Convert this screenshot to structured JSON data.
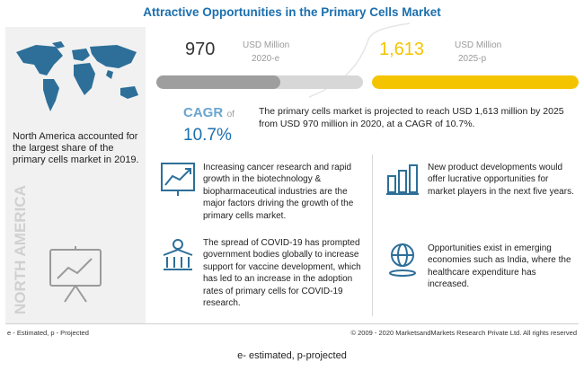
{
  "title": "Attractive Opportunities in the Primary Cells Market",
  "left_panel": {
    "summary": "North America accounted for the largest share of the primary cells market in 2019.",
    "region_label": "NORTH AMERICA"
  },
  "market": {
    "value_2020": "970",
    "unit_2020": "USD Million",
    "year_2020": "2020-e",
    "value_2025": "1,613",
    "unit_2025": "USD Million",
    "year_2025": "2025-p",
    "cagr_label": "CAGR",
    "cagr_of": "of",
    "cagr_value": "10.7%",
    "description": "The primary cells market is projected to reach USD 1,613 million by 2025 from USD 970 million in 2020, at a CAGR of 10.7%."
  },
  "chart_data": {
    "type": "bar",
    "categories": [
      "2020-e",
      "2025-p"
    ],
    "values": [
      970,
      1613
    ],
    "ylabel": "USD Million",
    "colors": [
      "#9e9e9e",
      "#f5c400"
    ],
    "cagr": "10.7%"
  },
  "insights": [
    {
      "icon": "growth-chart-icon",
      "text": "Increasing cancer research and rapid growth in the biotechnology & biopharmaceutical industries are the major factors driving the growth of the primary cells market."
    },
    {
      "icon": "money-growth-icon",
      "text": "New product developments would offer lucrative opportunities for market players in the next five years."
    },
    {
      "icon": "government-building-icon",
      "text": "The spread of COVID-19 has prompted government bodies globally to increase support for vaccine development, which has led to an increase in the adoption rates of primary cells for COVID-19 research."
    },
    {
      "icon": "globe-coins-icon",
      "text": "Opportunities exist in emerging economies such as India, where the healthcare expenditure has increased."
    }
  ],
  "footer": {
    "legend": "e - Estimated, p - Projected",
    "copyright": "© 2009 - 2020 MarketsandMarkets Research Private Ltd. All rights reserved"
  },
  "caption": "e- estimated, p-projected",
  "colors": {
    "title": "#1b6fae",
    "accent_yellow": "#f5c400",
    "accent_grey": "#9e9e9e",
    "cagr_blue": "#1b6fae"
  }
}
